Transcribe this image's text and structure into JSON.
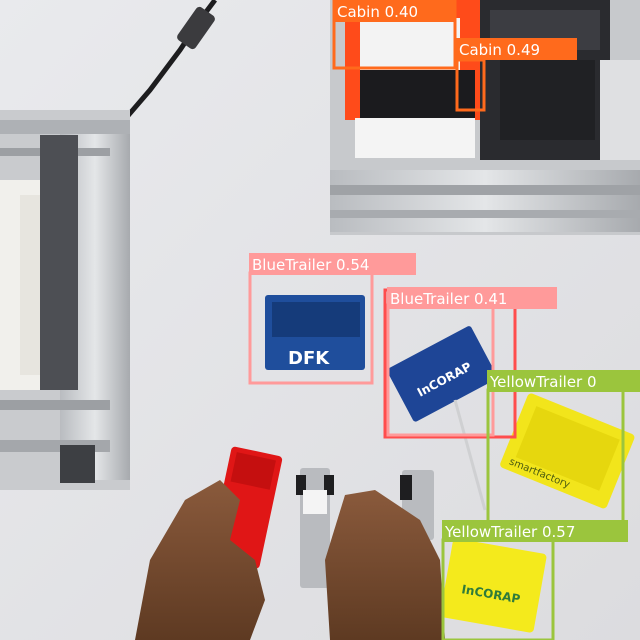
{
  "detections": [
    {
      "class": "Cabin",
      "score": "0.40",
      "label": "Cabin 0.40",
      "color": "#ff6a1c"
    },
    {
      "class": "Cabin",
      "score": "0.49",
      "label": "Cabin 0.49",
      "color": "#ff6a1c"
    },
    {
      "class": "BlueTrailer",
      "score": "0.54",
      "label": "BlueTrailer 0.54",
      "color": "#ff9a9a"
    },
    {
      "class": "BlueTrailer",
      "score": "0.41",
      "label": "BlueTrailer 0.41",
      "color": "#ff9a9a"
    },
    {
      "class": "YellowTrailer",
      "label": "YellowTrailer 0",
      "color": "#9bc53d"
    },
    {
      "class": "YellowTrailer",
      "score": "0.57",
      "label": "YellowTrailer 0.57",
      "color": "#9bc53d"
    }
  ],
  "printed_text": {
    "blue_trailer_logo": "DFK",
    "blue_trailer_brand": "InCORAP",
    "yellow_trailer_brand": "InCORAP",
    "yellow_trailer_side": "smartfactory"
  }
}
